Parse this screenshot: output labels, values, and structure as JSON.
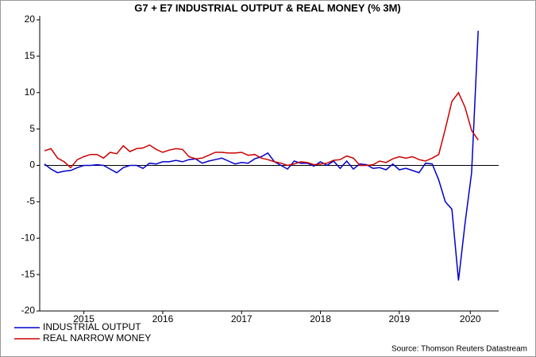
{
  "chart_data": {
    "type": "line",
    "title": "G7 + E7 INDUSTRIAL OUTPUT & REAL MONEY (% 3M)",
    "source": "Source: Thomson Reuters Datastream",
    "x": [
      2015,
      2015.083,
      2015.167,
      2015.25,
      2015.333,
      2015.417,
      2015.5,
      2015.583,
      2015.667,
      2015.75,
      2015.833,
      2015.917,
      2016,
      2016.083,
      2016.167,
      2016.25,
      2016.333,
      2016.417,
      2016.5,
      2016.583,
      2016.667,
      2016.75,
      2016.833,
      2016.917,
      2017,
      2017.083,
      2017.167,
      2017.25,
      2017.333,
      2017.417,
      2017.5,
      2017.583,
      2017.667,
      2017.75,
      2017.833,
      2017.917,
      2018,
      2018.083,
      2018.167,
      2018.25,
      2018.333,
      2018.417,
      2018.5,
      2018.583,
      2018.667,
      2018.75,
      2018.833,
      2018.917,
      2019,
      2019.083,
      2019.167,
      2019.25,
      2019.333,
      2019.417,
      2019.5,
      2019.583,
      2019.667,
      2019.75,
      2019.833,
      2019.917,
      2020,
      2020.083,
      2020.167,
      2020.25,
      2020.333,
      2020.417,
      2020.5
    ],
    "series": [
      {
        "name": "INDUSTRIAL OUTPUT",
        "color": "#0000cc",
        "values": [
          0.2,
          -0.5,
          -1.0,
          -0.8,
          -0.7,
          -0.3,
          0.0,
          0.0,
          0.1,
          0.0,
          -0.5,
          -1.0,
          -0.3,
          0.0,
          0.0,
          -0.4,
          0.3,
          0.2,
          0.5,
          0.5,
          0.7,
          0.5,
          0.8,
          0.9,
          0.3,
          0.6,
          0.8,
          1.0,
          0.6,
          0.2,
          0.4,
          0.3,
          0.9,
          1.2,
          1.7,
          0.5,
          0.0,
          -0.5,
          0.6,
          0.3,
          0.3,
          -0.1,
          0.5,
          0.0,
          0.6,
          -0.4,
          0.6,
          -0.5,
          0.2,
          0.1,
          -0.4,
          -0.3,
          -0.6,
          0.2,
          -0.6,
          -0.4,
          -0.7,
          -1.0,
          0.3,
          0.2,
          -2.0,
          -5.0,
          -6.0,
          -15.8,
          -8.0,
          -1.0,
          18.5
        ]
      },
      {
        "name": "REAL NARROW MONEY",
        "color": "#cc0000",
        "values": [
          2.0,
          2.3,
          1.0,
          0.5,
          -0.3,
          0.8,
          1.2,
          1.5,
          1.5,
          1.0,
          1.8,
          1.6,
          2.7,
          1.9,
          2.3,
          2.4,
          2.8,
          2.2,
          1.8,
          2.1,
          2.3,
          2.2,
          1.2,
          0.9,
          1.0,
          1.4,
          1.8,
          1.8,
          1.7,
          1.7,
          1.8,
          1.4,
          1.5,
          1.0,
          0.8,
          0.5,
          0.3,
          0.0,
          0.2,
          0.5,
          0.4,
          0.1,
          0.2,
          0.3,
          0.7,
          0.8,
          1.3,
          1.0,
          0.0,
          0.0,
          0.1,
          0.6,
          0.4,
          0.9,
          1.2,
          1.0,
          1.2,
          0.8,
          0.6,
          1.0,
          1.5,
          5.0,
          8.8,
          10.0,
          8.0,
          4.8,
          3.5
        ]
      }
    ],
    "xlim": [
      2014.94,
      2020.76
    ],
    "xticks": [
      {
        "value": 2015.5,
        "label": "2015"
      },
      {
        "value": 2016.5,
        "label": "2016"
      },
      {
        "value": 2017.5,
        "label": "2017"
      },
      {
        "value": 2018.5,
        "label": "2018"
      },
      {
        "value": 2019.5,
        "label": "2019"
      },
      {
        "value": 2020.4,
        "label": "2020"
      }
    ],
    "ylim": [
      -20,
      20
    ],
    "yticks": [
      20,
      15,
      10,
      5,
      0,
      -5,
      -10,
      -15,
      -20
    ],
    "zero_line": 0,
    "legend": "bottom-left"
  }
}
